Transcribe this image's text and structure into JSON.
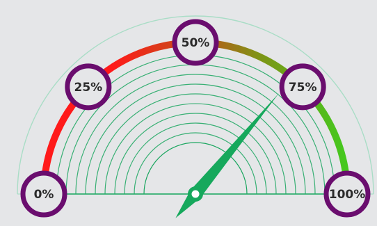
{
  "chart_data": {
    "type": "gauge",
    "title": "",
    "min": 0,
    "max": 100,
    "unit": "%",
    "value": 72,
    "tick_labels": [
      "0%",
      "25%",
      "50%",
      "75%",
      "100%"
    ],
    "tick_values": [
      0,
      25,
      50,
      75,
      100
    ],
    "colors": {
      "background": "#e5e6e8",
      "band_start": "#ff1a1a",
      "band_mid": "#c2521a",
      "band_end": "#45c81e",
      "ring": "#6a0d6e",
      "needle": "#16a85c",
      "inner_arcs": "#1aa65f",
      "outer_arc": "#a9ddc6"
    }
  }
}
